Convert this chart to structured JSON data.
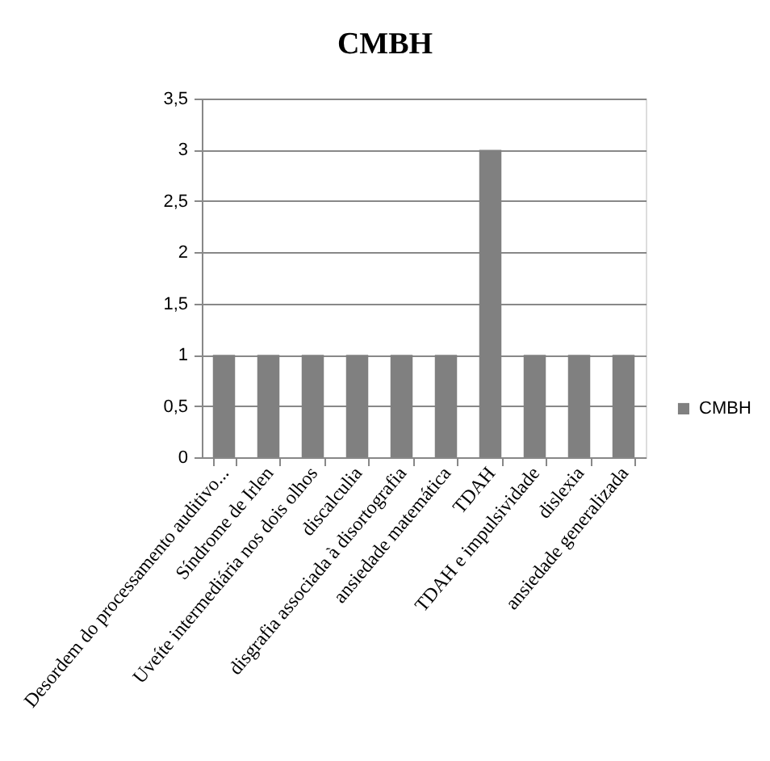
{
  "chart_data": {
    "type": "bar",
    "title": "CMBH",
    "categories": [
      "Desordem do processamento auditivo...",
      "Síndrome de Irlen",
      "Uveíte intermediária nos dois olhos",
      "discalculia",
      "disgrafia associada à disortografia",
      "ansiedade matemática",
      "TDAH",
      "TDAH e impulsividade",
      "dislexia",
      "ansiedade generalizada"
    ],
    "series": [
      {
        "name": "CMBH",
        "color": "#808080",
        "values": [
          1,
          1,
          1,
          1,
          1,
          1,
          3,
          1,
          1,
          1
        ]
      }
    ],
    "ylim": [
      0,
      3.5
    ],
    "yticks": [
      0,
      {
        "value": 0.5,
        "label": "0,5"
      },
      1,
      {
        "value": 1.5,
        "label": "1,5"
      },
      2,
      {
        "value": 2.5,
        "label": "2,5"
      },
      3,
      {
        "value": 3.5,
        "label": "3,5"
      }
    ],
    "grid": "y",
    "legend": "right"
  }
}
